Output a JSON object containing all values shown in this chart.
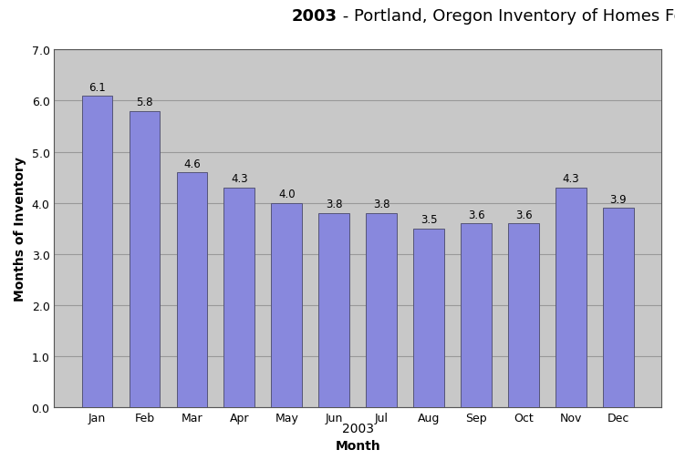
{
  "title_bold": "2003",
  "title_rest": " - Portland, Oregon Inventory of Homes For Sale",
  "months": [
    "Jan",
    "Feb",
    "Mar",
    "Apr",
    "May",
    "Jun",
    "Jul",
    "Aug",
    "Sep",
    "Oct",
    "Nov",
    "Dec"
  ],
  "values": [
    6.1,
    5.8,
    4.6,
    4.3,
    4.0,
    3.8,
    3.8,
    3.5,
    3.6,
    3.6,
    4.3,
    3.9
  ],
  "bar_color": "#8888DD",
  "bar_edge_color": "#555577",
  "xlabel": "Month",
  "xlabel_secondary": "2003",
  "ylabel": "Months of Inventory",
  "ylim": [
    0.0,
    7.0
  ],
  "yticks": [
    0.0,
    1.0,
    2.0,
    3.0,
    4.0,
    5.0,
    6.0,
    7.0
  ],
  "plot_bg_color": "#C8C8C8",
  "figure_bg_color": "#FFFFFF",
  "grid_color": "#999999",
  "title_fontsize": 13,
  "axis_label_fontsize": 10,
  "tick_fontsize": 9,
  "bar_label_fontsize": 8.5
}
